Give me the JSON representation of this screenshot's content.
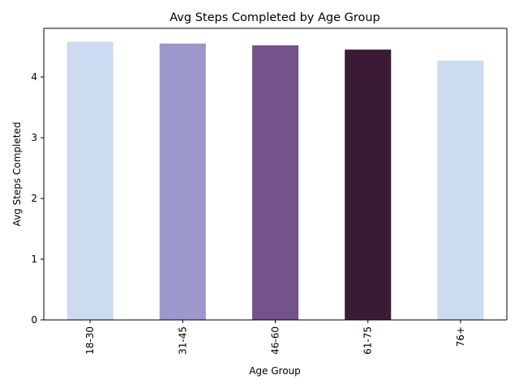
{
  "chart_data": {
    "type": "bar",
    "title": "Avg Steps Completed by Age Group",
    "xlabel": "Age Group",
    "ylabel": "Avg Steps Completed",
    "categories": [
      "18-30",
      "31-45",
      "46-60",
      "61-75",
      "76+"
    ],
    "values": [
      4.58,
      4.55,
      4.52,
      4.45,
      4.27
    ],
    "colors": [
      "#cddbf0",
      "#9c97cc",
      "#74528b",
      "#3a1b35",
      "#cddbf0"
    ],
    "yticks": [
      0,
      1,
      2,
      3,
      4
    ],
    "ylim": [
      0,
      4.8
    ],
    "grid": false,
    "legend": "none"
  }
}
